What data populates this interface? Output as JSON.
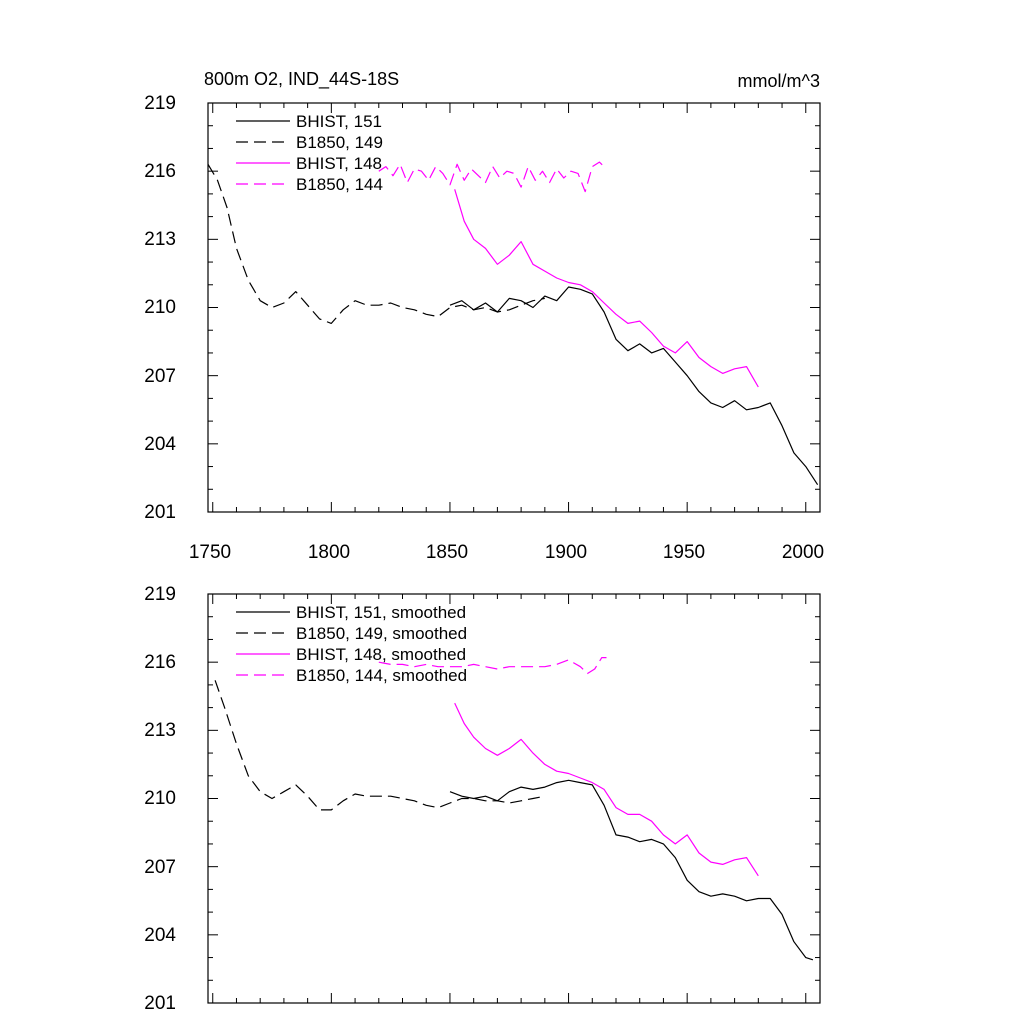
{
  "chart_data": [
    {
      "type": "line",
      "title": "800m O2, IND_44S-18S",
      "units": "mmol/m^3",
      "xlim": [
        1748,
        2006
      ],
      "ylim": [
        201,
        219
      ],
      "xticks": [
        1750,
        1800,
        1850,
        1900,
        1950,
        2000
      ],
      "xtick_labels": [
        "1750",
        "1800",
        "1850",
        "1900",
        "1950",
        "2000"
      ],
      "yticks": [
        201,
        204,
        207,
        210,
        213,
        216,
        219
      ],
      "ytick_labels": [
        "201",
        "204",
        "207",
        "210",
        "213",
        "216",
        "219"
      ],
      "legend_position": "top-left",
      "series": [
        {
          "name": "BHIST, 151",
          "color": "#000000",
          "style": "solid",
          "x": [
            1850,
            1855,
            1860,
            1865,
            1870,
            1875,
            1880,
            1885,
            1890,
            1895,
            1900,
            1905,
            1910,
            1915,
            1920,
            1925,
            1930,
            1935,
            1940,
            1945,
            1950,
            1955,
            1960,
            1965,
            1970,
            1975,
            1980,
            1985,
            1990,
            1995,
            2000,
            2005
          ],
          "y": [
            210.1,
            210.3,
            209.9,
            210.2,
            209.8,
            210.4,
            210.3,
            210.0,
            210.5,
            210.3,
            210.9,
            210.8,
            210.6,
            209.8,
            208.6,
            208.1,
            208.4,
            208.0,
            208.2,
            207.6,
            207.0,
            206.3,
            205.8,
            205.6,
            205.9,
            205.5,
            205.6,
            205.8,
            204.8,
            203.6,
            203.0,
            202.2
          ]
        },
        {
          "name": "B1850, 149",
          "color": "#000000",
          "style": "dashed",
          "x": [
            1748,
            1752,
            1756,
            1760,
            1765,
            1770,
            1775,
            1780,
            1785,
            1790,
            1795,
            1800,
            1805,
            1810,
            1815,
            1820,
            1825,
            1830,
            1835,
            1840,
            1845,
            1850,
            1855,
            1860,
            1865,
            1870,
            1875,
            1880,
            1885,
            1890
          ],
          "y": [
            216.3,
            215.6,
            214.4,
            212.6,
            211.2,
            210.3,
            210.0,
            210.2,
            210.7,
            210.1,
            209.5,
            209.3,
            209.9,
            210.3,
            210.1,
            210.1,
            210.2,
            210.0,
            209.9,
            209.7,
            209.6,
            210.0,
            210.1,
            209.9,
            210.0,
            209.8,
            209.9,
            210.1,
            210.3,
            210.4
          ]
        },
        {
          "name": "BHIST, 148",
          "color": "#ff00ff",
          "style": "solid",
          "x": [
            1852,
            1856,
            1860,
            1865,
            1870,
            1875,
            1880,
            1885,
            1890,
            1895,
            1900,
            1905,
            1910,
            1915,
            1920,
            1925,
            1930,
            1935,
            1940,
            1945,
            1950,
            1955,
            1960,
            1965,
            1970,
            1975,
            1980
          ],
          "y": [
            215.2,
            213.8,
            213.0,
            212.6,
            211.9,
            212.3,
            212.9,
            211.9,
            211.6,
            211.3,
            211.1,
            211.0,
            210.7,
            210.2,
            209.7,
            209.3,
            209.4,
            208.9,
            208.3,
            208.0,
            208.5,
            207.8,
            207.4,
            207.1,
            207.3,
            207.4,
            206.5
          ]
        },
        {
          "name": "B1850, 144",
          "color": "#ff00ff",
          "style": "dashed",
          "x": [
            1820,
            1823,
            1826,
            1829,
            1832,
            1835,
            1838,
            1841,
            1844,
            1847,
            1850,
            1853,
            1856,
            1859,
            1862,
            1865,
            1868,
            1871,
            1874,
            1877,
            1880,
            1883,
            1886,
            1889,
            1892,
            1895,
            1898,
            1901,
            1904,
            1907,
            1910,
            1913,
            1916
          ],
          "y": [
            216.0,
            216.2,
            215.8,
            216.3,
            215.5,
            216.1,
            216.0,
            215.6,
            216.2,
            215.9,
            215.4,
            216.3,
            215.6,
            216.1,
            215.8,
            215.5,
            216.2,
            215.7,
            216.0,
            215.9,
            215.3,
            216.2,
            215.6,
            216.0,
            215.5,
            216.1,
            215.7,
            216.0,
            215.9,
            215.1,
            216.2,
            216.4,
            216.1
          ]
        }
      ]
    },
    {
      "type": "line",
      "title": "",
      "units": "",
      "xlim": [
        1748,
        2006
      ],
      "ylim": [
        201,
        219
      ],
      "xticks": [
        1750,
        1800,
        1850,
        1900,
        1950,
        2000
      ],
      "yticks": [
        201,
        204,
        207,
        210,
        213,
        216,
        219
      ],
      "ytick_labels": [
        "201",
        "204",
        "207",
        "210",
        "213",
        "216",
        "219"
      ],
      "legend_position": "top-left",
      "series": [
        {
          "name": "BHIST, 151, smoothed",
          "color": "#000000",
          "style": "solid",
          "x": [
            1850,
            1855,
            1860,
            1865,
            1870,
            1875,
            1880,
            1885,
            1890,
            1895,
            1900,
            1905,
            1910,
            1915,
            1920,
            1925,
            1930,
            1935,
            1940,
            1945,
            1950,
            1955,
            1960,
            1965,
            1970,
            1975,
            1980,
            1985,
            1990,
            1995,
            2000,
            2003
          ],
          "y": [
            210.3,
            210.1,
            210.0,
            210.1,
            209.9,
            210.3,
            210.5,
            210.4,
            210.5,
            210.7,
            210.8,
            210.7,
            210.6,
            209.7,
            208.4,
            208.3,
            208.1,
            208.2,
            208.0,
            207.4,
            206.4,
            205.9,
            205.7,
            205.8,
            205.7,
            205.5,
            205.6,
            205.6,
            204.9,
            203.7,
            203.0,
            202.9
          ]
        },
        {
          "name": "B1850, 149, smoothed",
          "color": "#000000",
          "style": "dashed",
          "x": [
            1751,
            1755,
            1760,
            1765,
            1770,
            1775,
            1780,
            1785,
            1790,
            1795,
            1800,
            1805,
            1810,
            1815,
            1820,
            1825,
            1830,
            1835,
            1840,
            1845,
            1850,
            1855,
            1860,
            1865,
            1870,
            1875,
            1880,
            1885,
            1890
          ],
          "y": [
            215.2,
            214.0,
            212.4,
            211.0,
            210.3,
            210.0,
            210.3,
            210.6,
            210.1,
            209.5,
            209.5,
            209.9,
            210.2,
            210.1,
            210.1,
            210.1,
            210.0,
            209.9,
            209.7,
            209.6,
            209.8,
            210.0,
            210.0,
            209.9,
            209.9,
            209.8,
            209.9,
            210.0,
            210.1
          ]
        },
        {
          "name": "BHIST, 148, smoothed",
          "color": "#ff00ff",
          "style": "solid",
          "x": [
            1852,
            1856,
            1860,
            1865,
            1870,
            1875,
            1880,
            1885,
            1890,
            1895,
            1900,
            1905,
            1910,
            1915,
            1920,
            1925,
            1930,
            1935,
            1940,
            1945,
            1950,
            1955,
            1960,
            1965,
            1970,
            1975,
            1980
          ],
          "y": [
            214.2,
            213.3,
            212.7,
            212.2,
            211.9,
            212.2,
            212.6,
            212.0,
            211.5,
            211.2,
            211.1,
            210.9,
            210.7,
            210.4,
            209.6,
            209.3,
            209.3,
            209.0,
            208.4,
            208.0,
            208.4,
            207.6,
            207.2,
            207.1,
            207.3,
            207.4,
            206.6
          ]
        },
        {
          "name": "B1850, 144, smoothed",
          "color": "#ff00ff",
          "style": "dashed",
          "x": [
            1820,
            1825,
            1830,
            1835,
            1840,
            1845,
            1850,
            1855,
            1860,
            1865,
            1870,
            1875,
            1880,
            1885,
            1890,
            1895,
            1900,
            1905,
            1908,
            1911,
            1914,
            1916
          ],
          "y": [
            216.0,
            215.9,
            215.9,
            215.8,
            215.9,
            215.8,
            215.8,
            215.8,
            215.9,
            215.8,
            215.7,
            215.8,
            215.8,
            215.8,
            215.8,
            215.9,
            216.1,
            215.8,
            215.5,
            215.7,
            216.2,
            216.2
          ]
        }
      ]
    }
  ]
}
